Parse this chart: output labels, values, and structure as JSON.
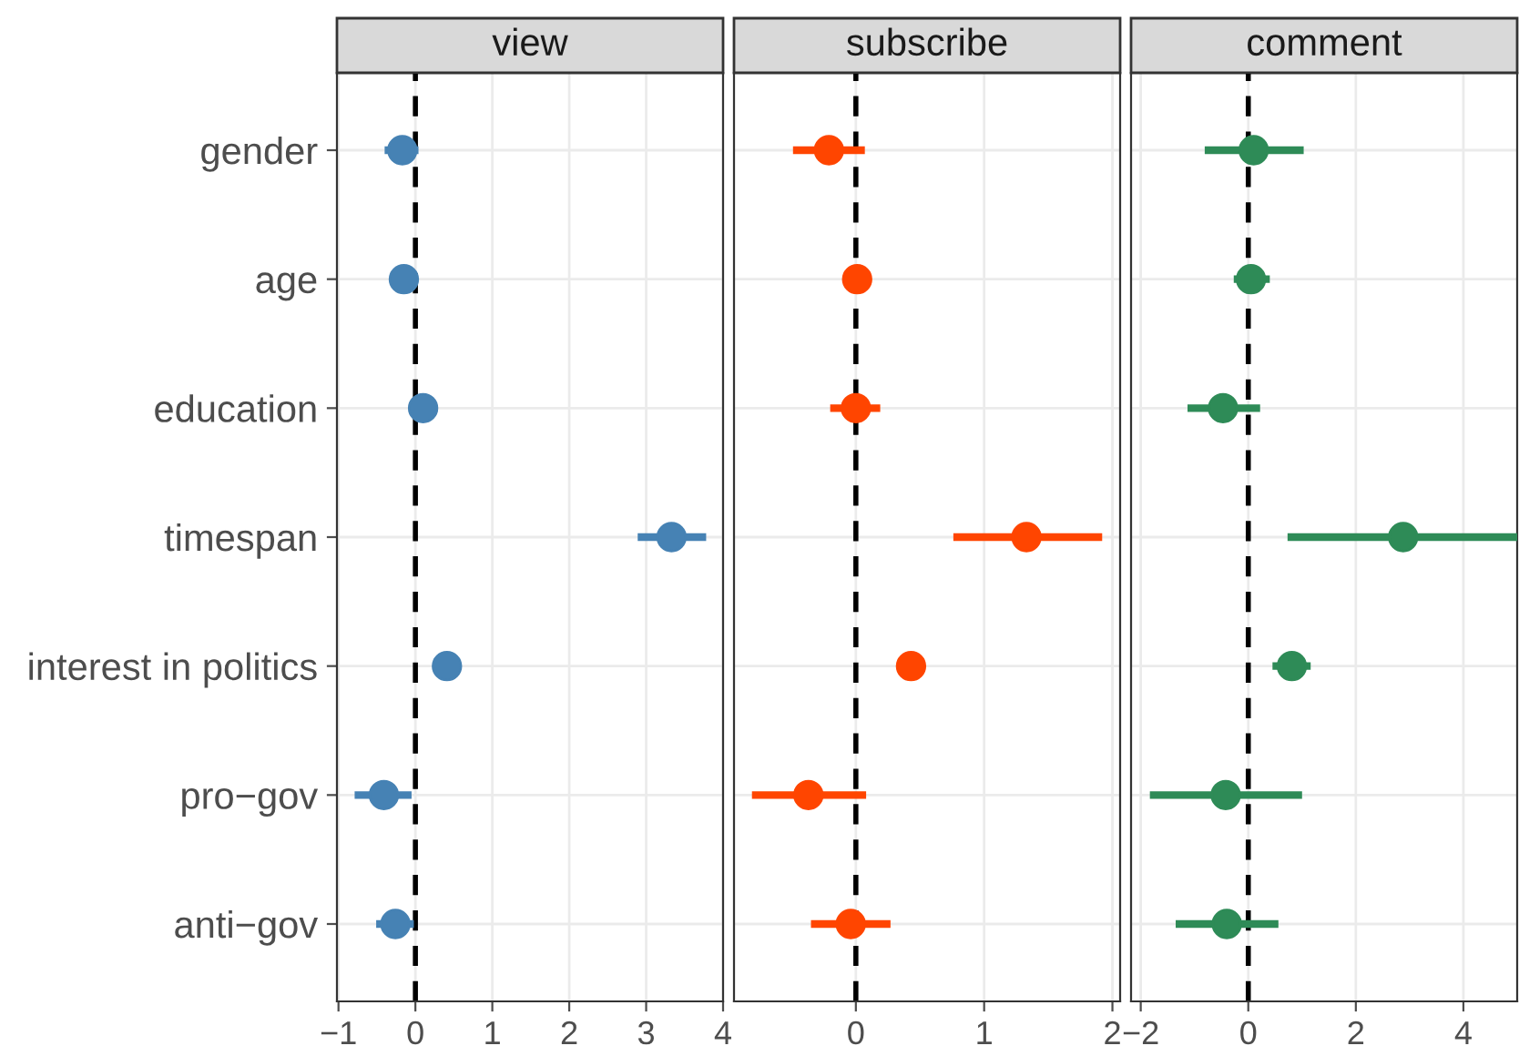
{
  "chart_data": [
    {
      "type": "scatter",
      "orientation": "horizontal",
      "title": "view",
      "color": "#4682b4",
      "marker": "circle",
      "grid": true,
      "categories": [
        "gender",
        "age",
        "education",
        "timespan",
        "interest in politics",
        "pro−gov",
        "anti−gov"
      ],
      "values": [
        -0.17,
        -0.15,
        0.1,
        3.33,
        0.41,
        -0.41,
        -0.26
      ],
      "errors": [
        [
          -0.4,
          0.04
        ],
        null,
        null,
        [
          2.89,
          3.78
        ],
        null,
        [
          -0.79,
          -0.05
        ],
        [
          -0.51,
          -0.02
        ]
      ],
      "xlim": [
        -1.02,
        4.0
      ],
      "xticks": [
        {
          "value": -1,
          "label": "−1"
        },
        0,
        1,
        2,
        3,
        4
      ],
      "ref_lines": [
        {
          "axis": "x",
          "value": 0,
          "line_style": "dashed",
          "color": "#000000"
        }
      ]
    },
    {
      "type": "scatter",
      "orientation": "horizontal",
      "title": "subscribe",
      "color": "#ff4500",
      "marker": "circle",
      "grid": true,
      "tick_labels": "x",
      "categories": [
        "gender",
        "age",
        "education",
        "timespan",
        "interest in politics",
        "pro−gov",
        "anti−gov"
      ],
      "values": [
        -0.21,
        0.01,
        0.0,
        1.33,
        0.43,
        -0.37,
        -0.04
      ],
      "errors": [
        [
          -0.49,
          0.07
        ],
        null,
        [
          -0.2,
          0.19
        ],
        [
          0.76,
          1.92
        ],
        [
          0.32,
          0.54
        ],
        [
          -0.81,
          0.08
        ],
        [
          -0.35,
          0.27
        ]
      ],
      "xlim": [
        -0.95,
        2.06
      ],
      "xticks": [
        0,
        1,
        2
      ],
      "ref_lines": [
        {
          "axis": "x",
          "value": 0,
          "line_style": "dashed",
          "color": "#000000"
        }
      ]
    },
    {
      "type": "scatter",
      "orientation": "horizontal",
      "title": "comment",
      "color": "#2e8b57",
      "marker": "circle",
      "grid": true,
      "tick_labels": "x",
      "categories": [
        "gender",
        "age",
        "education",
        "timespan",
        "interest in politics",
        "pro−gov",
        "anti−gov"
      ],
      "values": [
        0.1,
        0.05,
        -0.47,
        2.88,
        0.81,
        -0.42,
        -0.4
      ],
      "errors": [
        [
          -0.81,
          1.03
        ],
        [
          -0.27,
          0.4
        ],
        [
          -1.13,
          0.22
        ],
        [
          0.73,
          5.0
        ],
        [
          0.45,
          1.16
        ],
        [
          -1.83,
          1.0
        ],
        [
          -1.35,
          0.56
        ]
      ],
      "xlim": [
        -2.18,
        5.0
      ],
      "xticks": [
        {
          "value": -2,
          "label": "−2"
        },
        0,
        2,
        4
      ],
      "ref_lines": [
        {
          "axis": "x",
          "value": 0,
          "line_style": "dashed",
          "color": "#000000"
        }
      ]
    }
  ]
}
